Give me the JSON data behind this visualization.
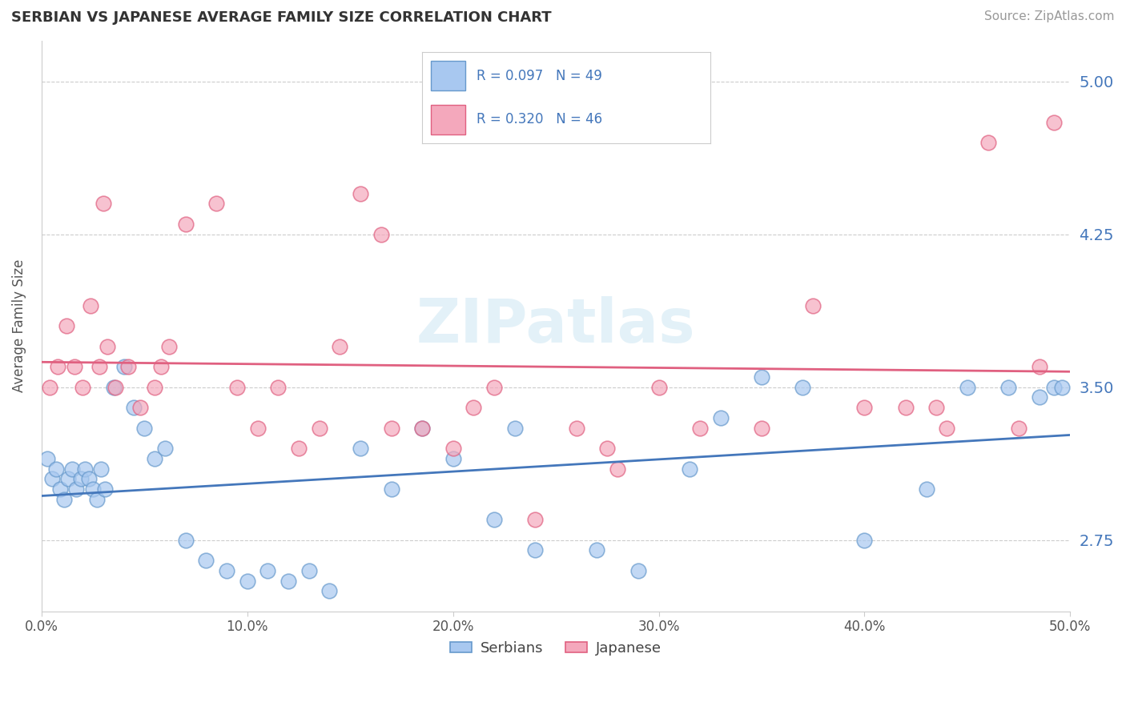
{
  "title": "SERBIAN VS JAPANESE AVERAGE FAMILY SIZE CORRELATION CHART",
  "source_text": "Source: ZipAtlas.com",
  "ylabel": "Average Family Size",
  "yticks": [
    2.75,
    3.5,
    4.25,
    5.0
  ],
  "xlim": [
    0.0,
    50.0
  ],
  "ylim": [
    2.4,
    5.2
  ],
  "watermark": "ZIPatlas",
  "serbian_color": "#A8C8F0",
  "japanese_color": "#F4A8BC",
  "serbian_edge_color": "#6699CC",
  "japanese_edge_color": "#E06080",
  "serbian_line_color": "#4477BB",
  "japanese_line_color": "#E06080",
  "legend_text_color": "#4477BB",
  "ytick_color": "#4477BB",
  "serbian_scatter_x": [
    0.3,
    0.5,
    0.7,
    0.9,
    1.1,
    1.3,
    1.5,
    1.7,
    1.9,
    2.1,
    2.3,
    2.5,
    2.7,
    2.9,
    3.1,
    3.5,
    4.0,
    4.5,
    5.0,
    5.5,
    6.0,
    7.0,
    8.0,
    9.0,
    10.0,
    11.0,
    12.0,
    13.0,
    14.0,
    15.5,
    17.0,
    18.5,
    20.0,
    22.0,
    24.0,
    27.0,
    29.0,
    31.5,
    35.0,
    37.0,
    40.0,
    43.0,
    45.0,
    47.0,
    48.5,
    49.2,
    49.6,
    23.0,
    33.0
  ],
  "serbian_scatter_y": [
    3.15,
    3.05,
    3.1,
    3.0,
    2.95,
    3.05,
    3.1,
    3.0,
    3.05,
    3.1,
    3.05,
    3.0,
    2.95,
    3.1,
    3.0,
    3.5,
    3.6,
    3.4,
    3.3,
    3.15,
    3.2,
    2.75,
    2.65,
    2.6,
    2.55,
    2.6,
    2.55,
    2.6,
    2.5,
    3.2,
    3.0,
    3.3,
    3.15,
    2.85,
    2.7,
    2.7,
    2.6,
    3.1,
    3.55,
    3.5,
    2.75,
    3.0,
    3.5,
    3.5,
    3.45,
    3.5,
    3.5,
    3.3,
    3.35
  ],
  "japanese_scatter_x": [
    0.4,
    0.8,
    1.2,
    1.6,
    2.0,
    2.4,
    2.8,
    3.2,
    3.6,
    4.2,
    4.8,
    5.5,
    6.2,
    7.0,
    8.5,
    9.5,
    10.5,
    11.5,
    12.5,
    13.5,
    14.5,
    15.5,
    17.0,
    18.5,
    20.0,
    22.0,
    24.0,
    26.0,
    28.0,
    30.0,
    32.0,
    35.0,
    37.5,
    40.0,
    42.0,
    44.0,
    46.0,
    47.5,
    48.5,
    49.2,
    21.0,
    5.8,
    3.0,
    16.5,
    27.5,
    43.5
  ],
  "japanese_scatter_y": [
    3.5,
    3.6,
    3.8,
    3.6,
    3.5,
    3.9,
    3.6,
    3.7,
    3.5,
    3.6,
    3.4,
    3.5,
    3.7,
    4.3,
    4.4,
    3.5,
    3.3,
    3.5,
    3.2,
    3.3,
    3.7,
    4.45,
    3.3,
    3.3,
    3.2,
    3.5,
    2.85,
    3.3,
    3.1,
    3.5,
    3.3,
    3.3,
    3.9,
    3.4,
    3.4,
    3.3,
    4.7,
    3.3,
    3.6,
    4.8,
    3.4,
    3.6,
    4.4,
    4.25,
    3.2,
    3.4
  ]
}
